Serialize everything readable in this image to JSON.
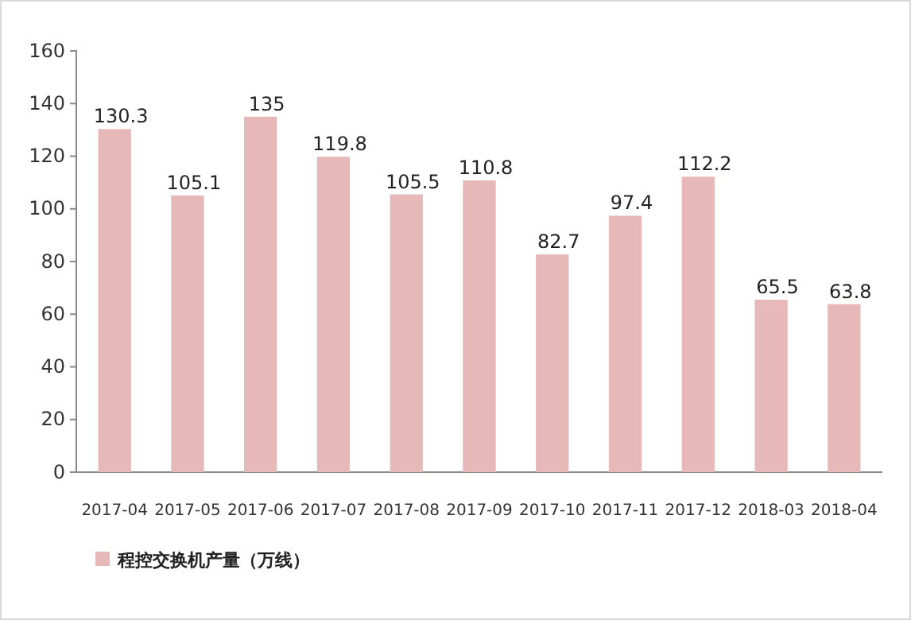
{
  "chart_data": {
    "type": "bar",
    "categories": [
      "2017-04",
      "2017-05",
      "2017-06",
      "2017-07",
      "2017-08",
      "2017-09",
      "2017-10",
      "2017-11",
      "2017-12",
      "2018-03",
      "2018-04"
    ],
    "series": [
      {
        "name": "程控交换机产量（万线）",
        "color": "#e6b9b8",
        "values": [
          130.3,
          105.1,
          135,
          119.8,
          105.5,
          110.8,
          82.7,
          97.4,
          112.2,
          65.5,
          63.8
        ]
      }
    ],
    "ylim": [
      0,
      160
    ],
    "yticks": [
      0,
      20,
      40,
      60,
      80,
      100,
      120,
      140,
      160
    ],
    "data_labels": true,
    "legend": "bottom left",
    "grid": false
  }
}
